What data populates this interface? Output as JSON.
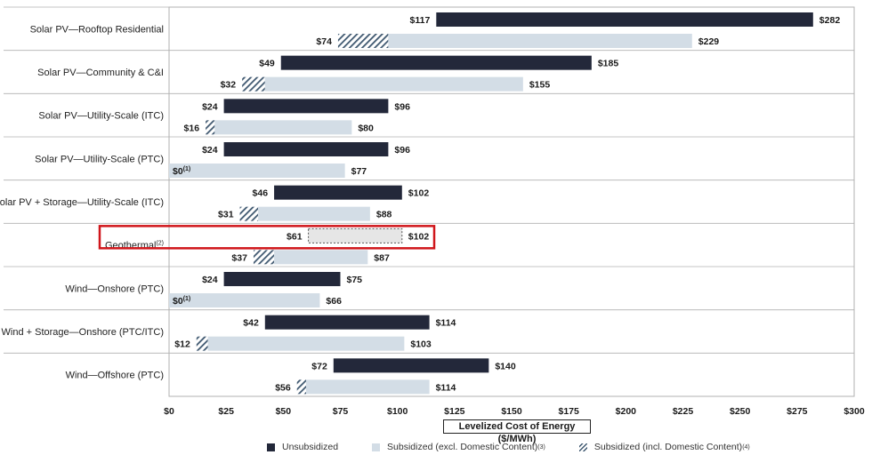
{
  "chart_data": {
    "type": "bar",
    "orientation": "horizontal",
    "xlabel": "Levelized Cost of Energy ($/MWh)",
    "xlim": [
      0,
      300
    ],
    "xticks": [
      0,
      25,
      50,
      75,
      100,
      125,
      150,
      175,
      200,
      225,
      250,
      275,
      300
    ],
    "xtick_labels": [
      "$0",
      "$25",
      "$50",
      "$75",
      "$100",
      "$125",
      "$150",
      "$175",
      "$200",
      "$225",
      "$250",
      "$275",
      "$300"
    ],
    "legend": [
      {
        "key": "unsub",
        "label": "Unsubsidized",
        "sup": ""
      },
      {
        "key": "sub",
        "label": "Subsidized (excl. Domestic Content)",
        "sup": "(3)"
      },
      {
        "key": "dom",
        "label": "Subsidized (incl. Domestic Content)",
        "sup": "(4)"
      }
    ],
    "legend_position": "bottom",
    "highlight_category": "Geothermal",
    "colors": {
      "unsubsidized": "#23283a",
      "subsidized": "#d3dde6",
      "hatch": "#3f5870",
      "highlight": "#d0161b",
      "grid": "#b0b0b0"
    },
    "categories": [
      {
        "name": "Solar PV—Rooftop Residential",
        "sup": "",
        "unsub": {
          "low": 117,
          "high": 282,
          "low_label": "$117",
          "high_label": "$282"
        },
        "sub": {
          "low": 74,
          "dom_end": 96,
          "high": 229,
          "low_label": "$74",
          "low_sup": "",
          "high_label": "$229"
        }
      },
      {
        "name": "Solar PV—Community & C&I",
        "sup": "",
        "unsub": {
          "low": 49,
          "high": 185,
          "low_label": "$49",
          "high_label": "$185"
        },
        "sub": {
          "low": 32,
          "dom_end": 42,
          "high": 155,
          "low_label": "$32",
          "low_sup": "",
          "high_label": "$155"
        }
      },
      {
        "name": "Solar PV—Utility-Scale (ITC)",
        "sup": "",
        "unsub": {
          "low": 24,
          "high": 96,
          "low_label": "$24",
          "high_label": "$96"
        },
        "sub": {
          "low": 16,
          "dom_end": 20,
          "high": 80,
          "low_label": "$16",
          "low_sup": "",
          "high_label": "$80"
        }
      },
      {
        "name": "Solar PV—Utility-Scale (PTC)",
        "sup": "",
        "unsub": {
          "low": 24,
          "high": 96,
          "low_label": "$24",
          "high_label": "$96"
        },
        "sub": {
          "low": 0,
          "dom_end": 0,
          "high": 77,
          "low_label": "$0",
          "low_sup": "(1)",
          "high_label": "$77"
        }
      },
      {
        "name": "Solar PV + Storage—Utility-Scale (ITC)",
        "sup": "",
        "unsub": {
          "low": 46,
          "high": 102,
          "low_label": "$46",
          "high_label": "$102"
        },
        "sub": {
          "low": 31,
          "dom_end": 39,
          "high": 88,
          "low_label": "$31",
          "low_sup": "",
          "high_label": "$88"
        }
      },
      {
        "name": "Geothermal",
        "sup": "(2)",
        "unsub_dashed": true,
        "unsub": {
          "low": 61,
          "high": 102,
          "low_label": "$61",
          "high_label": "$102"
        },
        "sub": {
          "low": 37,
          "dom_end": 46,
          "high": 87,
          "low_label": "$37",
          "low_sup": "",
          "high_label": "$87"
        }
      },
      {
        "name": "Wind—Onshore (PTC)",
        "sup": "",
        "unsub": {
          "low": 24,
          "high": 75,
          "low_label": "$24",
          "high_label": "$75"
        },
        "sub": {
          "low": 0,
          "dom_end": 0,
          "high": 66,
          "low_label": "$0",
          "low_sup": "(1)",
          "high_label": "$66"
        }
      },
      {
        "name": "Wind + Storage—Onshore (PTC/ITC)",
        "sup": "",
        "unsub": {
          "low": 42,
          "high": 114,
          "low_label": "$42",
          "high_label": "$114"
        },
        "sub": {
          "low": 12,
          "dom_end": 17,
          "high": 103,
          "low_label": "$12",
          "low_sup": "",
          "high_label": "$103"
        }
      },
      {
        "name": "Wind—Offshore (PTC)",
        "sup": "",
        "unsub": {
          "low": 72,
          "high": 140,
          "low_label": "$72",
          "high_label": "$140"
        },
        "sub": {
          "low": 56,
          "dom_end": 60,
          "high": 114,
          "low_label": "$56",
          "low_sup": "",
          "high_label": "$114"
        }
      }
    ]
  }
}
